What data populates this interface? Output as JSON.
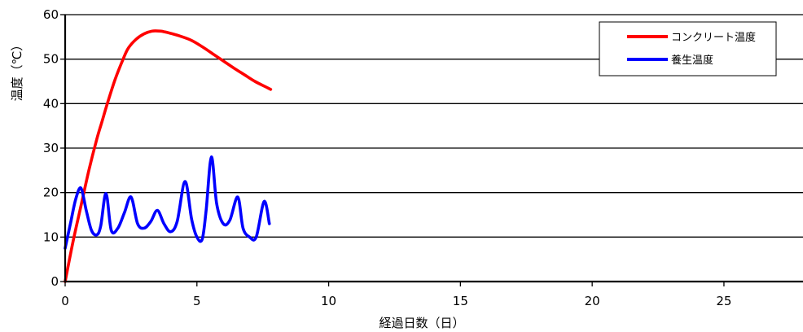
{
  "chart_data": {
    "type": "line",
    "xlabel": "経過日数（日）",
    "ylabel": "温度（℃）",
    "xlim": [
      0,
      28
    ],
    "ylim": [
      0,
      60
    ],
    "xticks": [
      0,
      5,
      10,
      15,
      20,
      25
    ],
    "yticks": [
      0,
      10,
      20,
      30,
      40,
      50,
      60
    ],
    "grid": "horizontal",
    "legend_position": "top-right",
    "series": [
      {
        "name": "コンクリート温度",
        "color": "#ff0000",
        "x": [
          0,
          0.3,
          0.6,
          0.9,
          1.2,
          1.4,
          1.6,
          1.9,
          2.2,
          2.4,
          2.7,
          3.0,
          3.3,
          3.6,
          3.8,
          4.0,
          4.4,
          4.8,
          5.2,
          5.6,
          6.0,
          6.4,
          6.8,
          7.2,
          7.6,
          7.8
        ],
        "y": [
          0,
          9,
          17,
          25,
          32,
          36,
          40,
          45.5,
          50,
          52.5,
          54.5,
          55.7,
          56.3,
          56.3,
          56.1,
          55.8,
          55.1,
          54.2,
          52.8,
          51.2,
          49.6,
          48,
          46.5,
          45,
          43.8,
          43.2
        ]
      },
      {
        "name": "養生温度",
        "color": "#0000ff",
        "x": [
          0,
          0.2,
          0.4,
          0.6,
          0.8,
          1.0,
          1.2,
          1.35,
          1.55,
          1.75,
          2.0,
          2.25,
          2.5,
          2.75,
          3.0,
          3.25,
          3.5,
          3.75,
          4.0,
          4.25,
          4.55,
          4.8,
          5.0,
          5.2,
          5.35,
          5.55,
          5.75,
          6.0,
          6.25,
          6.55,
          6.75,
          7.0,
          7.25,
          7.55,
          7.75
        ],
        "y": [
          7.5,
          13,
          18.5,
          21,
          16,
          11.5,
          10.5,
          12.5,
          19.8,
          11.5,
          12,
          15.5,
          19,
          13,
          12,
          13.5,
          16,
          13,
          11.2,
          13.5,
          22.5,
          14,
          10,
          9.5,
          16,
          28,
          17.5,
          13,
          13.8,
          19,
          12,
          10,
          10,
          18,
          13
        ]
      }
    ]
  }
}
